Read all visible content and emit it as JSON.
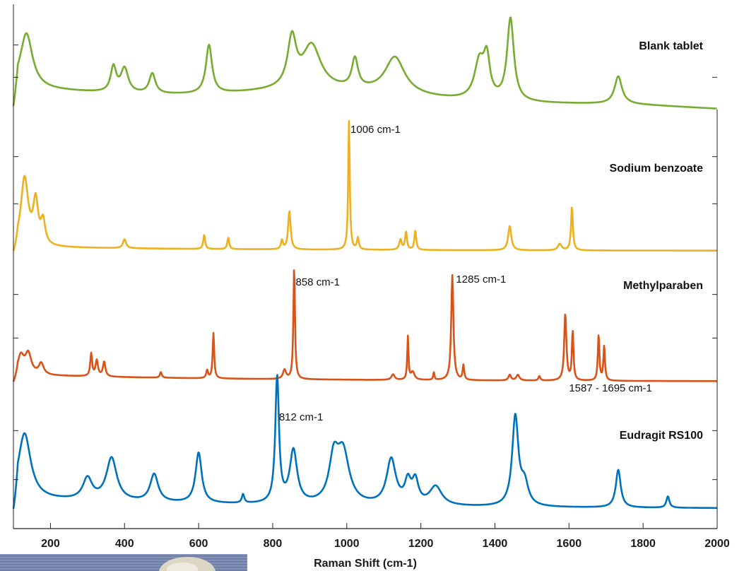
{
  "chart_data": {
    "type": "line",
    "title": "",
    "xlabel": "Raman Shift (cm-1)",
    "ylabel": "",
    "xlim": [
      100,
      2000
    ],
    "xticks": [
      200,
      400,
      600,
      800,
      1000,
      1200,
      1400,
      1600,
      1800,
      2000
    ],
    "ytick_count_per_panel": 2,
    "grid": false,
    "legend": "none (series labelled in-panel, right side)",
    "panels": [
      {
        "name": "Blank tablet",
        "color": "#77ac30",
        "peaks": [
          [
            135,
            0.66
          ],
          [
            370,
            0.3
          ],
          [
            400,
            0.29
          ],
          [
            475,
            0.24
          ],
          [
            628,
            0.58
          ],
          [
            852,
            0.58
          ],
          [
            905,
            0.52
          ],
          [
            1022,
            0.35
          ],
          [
            1130,
            0.44
          ],
          [
            1358,
            0.45
          ],
          [
            1378,
            0.45
          ],
          [
            1442,
            0.99
          ],
          [
            1733,
            0.33
          ]
        ]
      },
      {
        "name": "Sodium benzoate",
        "color": "#edb120",
        "peaks": [
          [
            130,
            0.53
          ],
          [
            160,
            0.33
          ],
          [
            180,
            0.18
          ],
          [
            400,
            0.07
          ],
          [
            615,
            0.11
          ],
          [
            680,
            0.09
          ],
          [
            825,
            0.07
          ],
          [
            845,
            0.3
          ],
          [
            1006,
            1.0
          ],
          [
            1030,
            0.09
          ],
          [
            1145,
            0.08
          ],
          [
            1160,
            0.14
          ],
          [
            1185,
            0.15
          ],
          [
            1440,
            0.19
          ],
          [
            1575,
            0.05
          ],
          [
            1608,
            0.34
          ]
        ]
      },
      {
        "name": "Methylparaben",
        "color": "#d95319",
        "peaks": [
          [
            120,
            0.16
          ],
          [
            140,
            0.18
          ],
          [
            175,
            0.1
          ],
          [
            310,
            0.2
          ],
          [
            325,
            0.14
          ],
          [
            345,
            0.13
          ],
          [
            498,
            0.05
          ],
          [
            623,
            0.07
          ],
          [
            640,
            0.4
          ],
          [
            832,
            0.08
          ],
          [
            858,
            1.0
          ],
          [
            1125,
            0.05
          ],
          [
            1165,
            0.38
          ],
          [
            1178,
            0.07
          ],
          [
            1235,
            0.07
          ],
          [
            1285,
            0.93
          ],
          [
            1315,
            0.13
          ],
          [
            1440,
            0.05
          ],
          [
            1462,
            0.05
          ],
          [
            1520,
            0.04
          ],
          [
            1590,
            0.59
          ],
          [
            1610,
            0.44
          ],
          [
            1680,
            0.41
          ],
          [
            1695,
            0.31
          ]
        ]
      },
      {
        "name": "Eudragit RS100",
        "color": "#0072bd",
        "peaks": [
          [
            130,
            0.52
          ],
          [
            300,
            0.17
          ],
          [
            365,
            0.34
          ],
          [
            480,
            0.22
          ],
          [
            600,
            0.4
          ],
          [
            720,
            0.07
          ],
          [
            812,
            1.0
          ],
          [
            856,
            0.42
          ],
          [
            965,
            0.33
          ],
          [
            990,
            0.4
          ],
          [
            1120,
            0.36
          ],
          [
            1165,
            0.17
          ],
          [
            1185,
            0.18
          ],
          [
            1240,
            0.15
          ],
          [
            1455,
            0.71
          ],
          [
            1480,
            0.17
          ],
          [
            1733,
            0.3
          ],
          [
            1867,
            0.09
          ]
        ]
      }
    ],
    "annotations": [
      {
        "text": "1006 cm-1",
        "series": "Sodium benzoate",
        "x": 1006
      },
      {
        "text": "858 cm-1",
        "series": "Methylparaben",
        "x": 858
      },
      {
        "text": "1285 cm-1",
        "series": "Methylparaben",
        "x": 1285
      },
      {
        "text": "1587 - 1695 cm-1",
        "series": "Methylparaben",
        "x": 1640
      },
      {
        "text": "812 cm-1",
        "series": "Eudragit RS100",
        "x": 812
      }
    ]
  }
}
